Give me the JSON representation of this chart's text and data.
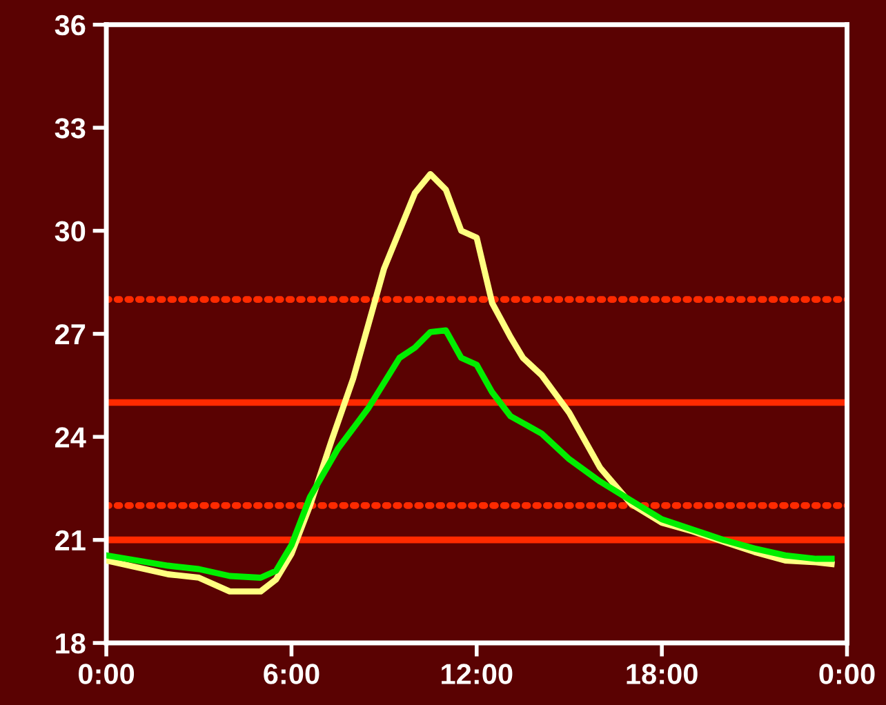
{
  "chart_data": {
    "type": "line",
    "xlim": [
      0,
      24
    ],
    "xticks": [
      {
        "value": 0,
        "label": "0:00"
      },
      {
        "value": 6,
        "label": "6:00"
      },
      {
        "value": 12,
        "label": "12:00"
      },
      {
        "value": 18,
        "label": "18:00"
      },
      {
        "value": 24,
        "label": "0:00"
      }
    ],
    "ylim": [
      18,
      36
    ],
    "yticks": [
      18,
      21,
      24,
      27,
      30,
      33,
      36
    ],
    "grid": false,
    "legend": false,
    "marker": "none",
    "line_style": "solid",
    "series": [
      {
        "color": "#ffff80",
        "x": [
          0,
          1,
          2,
          3,
          4,
          5,
          5.5,
          6,
          6.6,
          7.3,
          8,
          9,
          10,
          10.5,
          11,
          11.5,
          12,
          12.5,
          13.1,
          13.5,
          14.1,
          15,
          16,
          17,
          18,
          19,
          20,
          21,
          22,
          23,
          23.5
        ],
        "values": [
          20.4,
          20.2,
          20.0,
          19.9,
          19.5,
          19.5,
          19.85,
          20.6,
          22.0,
          23.9,
          25.7,
          28.9,
          31.1,
          31.65,
          31.2,
          30.0,
          29.8,
          27.9,
          26.9,
          26.3,
          25.8,
          24.7,
          23.1,
          22.05,
          21.5,
          21.25,
          20.95,
          20.65,
          20.4,
          20.35,
          20.3
        ]
      },
      {
        "color": "#00ee00",
        "x": [
          0,
          1,
          2,
          3,
          4,
          5,
          5.5,
          6,
          6.6,
          7.5,
          8.5,
          9.5,
          10,
          10.5,
          11,
          11.5,
          12,
          12.5,
          13.1,
          14.1,
          15,
          16,
          17,
          18,
          19,
          20,
          21,
          22,
          23,
          23.5
        ],
        "values": [
          20.55,
          20.4,
          20.25,
          20.15,
          19.95,
          19.9,
          20.1,
          20.85,
          22.25,
          23.65,
          24.85,
          26.3,
          26.6,
          27.05,
          27.1,
          26.3,
          26.1,
          25.3,
          24.6,
          24.1,
          23.35,
          22.7,
          22.15,
          21.6,
          21.3,
          21.0,
          20.75,
          20.55,
          20.45,
          20.45
        ]
      }
    ],
    "ref_lines": [
      {
        "axis": "y",
        "value": 28,
        "color": "#ff2a00",
        "line_style": "dotted"
      },
      {
        "axis": "y",
        "value": 25,
        "color": "#ff2a00",
        "line_style": "solid"
      },
      {
        "axis": "y",
        "value": 22,
        "color": "#ff2a00",
        "line_style": "dotted"
      },
      {
        "axis": "y",
        "value": 21,
        "color": "#ff2a00",
        "line_style": "solid"
      }
    ]
  }
}
